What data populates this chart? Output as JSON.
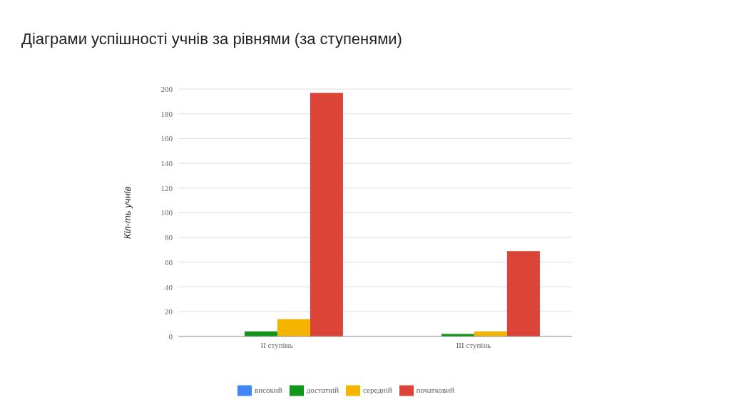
{
  "chart_data": {
    "type": "bar",
    "title": "Діаграми успішності учнів за рівнями (за ступенями)",
    "ylabel": "Кіл-ть учнів",
    "categories": [
      "II ступінь",
      "III ступінь"
    ],
    "series": [
      {
        "name": "високий",
        "color": "#4285f4",
        "values": [
          0,
          0
        ]
      },
      {
        "name": "достатній",
        "color": "#109618",
        "values": [
          4,
          2
        ]
      },
      {
        "name": "середній",
        "color": "#f4b400",
        "values": [
          14,
          4
        ]
      },
      {
        "name": "початковий",
        "color": "#db4437",
        "values": [
          197,
          69
        ]
      }
    ],
    "ylim": [
      0,
      200
    ],
    "yticks": [
      0,
      20,
      40,
      60,
      80,
      100,
      120,
      140,
      160,
      180,
      200
    ],
    "grid": "y",
    "legend": "bottom"
  }
}
